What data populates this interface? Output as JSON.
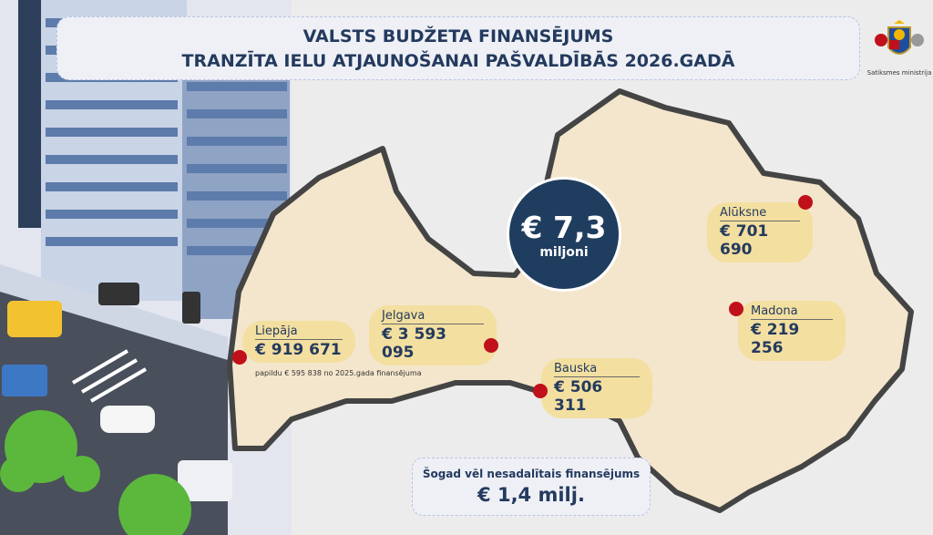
{
  "title": {
    "line1": "VALSTS BUDŽETA FINANSĒJUMS",
    "line2": "TRANZĪTA IELU ATJAUNOŠANAI PAŠVALDĪBĀS 2026.GADĀ"
  },
  "logo": {
    "text": "Satiksmes ministrija"
  },
  "total": {
    "amount": "€ 7,3",
    "unit": "miljoni"
  },
  "cities": [
    {
      "name": "Liepāja",
      "amount": "€ 919 671"
    },
    {
      "name": "Jelgava",
      "amount": "€ 3 593 095"
    },
    {
      "name": "Bauska",
      "amount": "€ 506 311"
    },
    {
      "name": "Alūksne",
      "amount": "€ 701 690"
    },
    {
      "name": "Madona",
      "amount": "€ 219 256"
    }
  ],
  "liepaja_note": "papildu € 595 838 no 2025.gada finansējuma",
  "unallocated": {
    "label": "Šogad vēl nesadalītais finansējums",
    "amount": "€ 1,4 milj."
  },
  "colors": {
    "map_fill": "#f4e6cc",
    "border": "#444444",
    "badge": "#f3dfa0",
    "navy": "#1f3d5e",
    "marker": "#c0101a"
  }
}
